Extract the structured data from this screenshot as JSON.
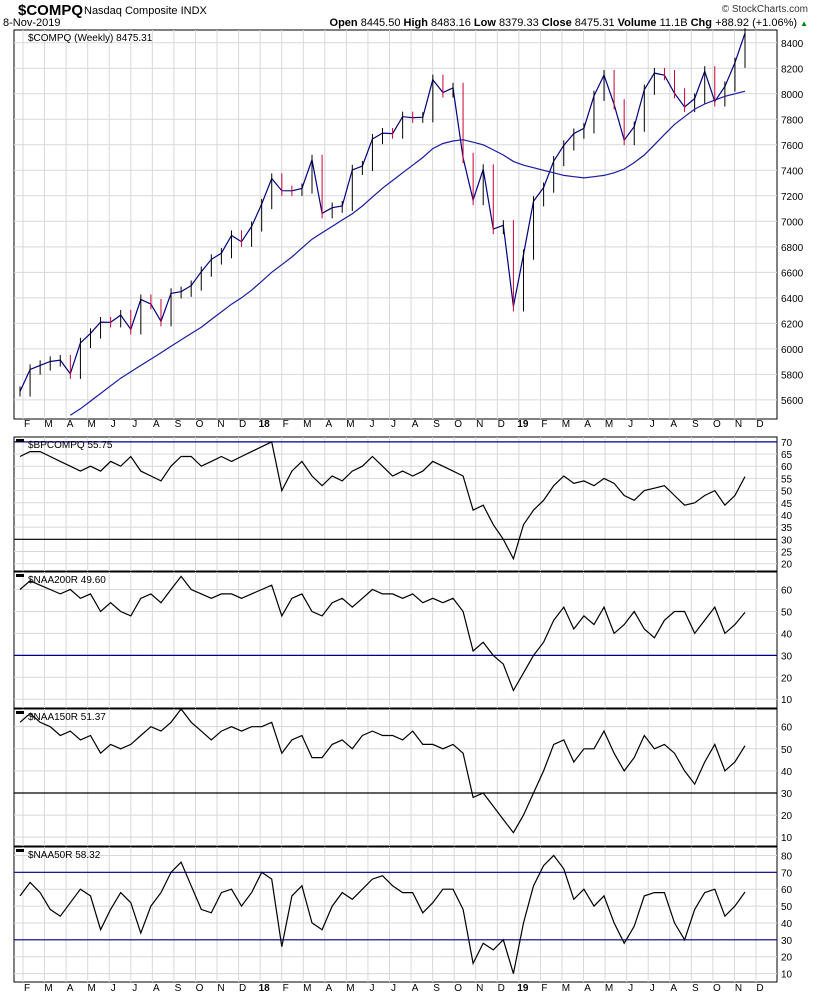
{
  "header": {
    "symbol": "$COMPQ",
    "name": "Nasdaq Composite INDX",
    "date": "8-Nov-2019",
    "brand": "© StockCharts.com",
    "open_label": "Open",
    "open": "8445.50",
    "high_label": "High",
    "high": "8483.16",
    "low_label": "Low",
    "low": "8379.33",
    "close_label": "Close",
    "close": "8475.31",
    "volume_label": "Volume",
    "volume": "11.1B",
    "chg_label": "Chg",
    "chg": "+88.92 (+1.06%)",
    "chg_arrow": "▲"
  },
  "colors": {
    "price": "#000080",
    "ma": "#1a1aa0",
    "indicator": "#000000",
    "ref_blue": "#00008b",
    "ref_black": "#000000",
    "grid": "#d8d8d8",
    "down_bar": "#cc0033"
  },
  "chart_data": [
    {
      "type": "line",
      "legend": "$COMPQ (Weekly) 8475.31",
      "ylim": [
        5450,
        8500
      ],
      "yticks": [
        5600,
        5800,
        6000,
        6200,
        6400,
        6600,
        6800,
        7000,
        7200,
        7400,
        7600,
        7800,
        8000,
        8200,
        8400
      ],
      "x": [
        "2017-02-03",
        "2017-02-17",
        "2017-03-03",
        "2017-03-17",
        "2017-03-31",
        "2017-04-14",
        "2017-04-28",
        "2017-05-12",
        "2017-05-26",
        "2017-06-09",
        "2017-06-23",
        "2017-07-07",
        "2017-07-21",
        "2017-08-04",
        "2017-08-18",
        "2017-09-01",
        "2017-09-15",
        "2017-09-29",
        "2017-10-13",
        "2017-10-27",
        "2017-11-10",
        "2017-11-24",
        "2017-12-08",
        "2017-12-22",
        "2018-01-05",
        "2018-01-19",
        "2018-02-02",
        "2018-02-16",
        "2018-03-02",
        "2018-03-16",
        "2018-03-30",
        "2018-04-13",
        "2018-04-27",
        "2018-05-11",
        "2018-05-25",
        "2018-06-08",
        "2018-06-22",
        "2018-07-06",
        "2018-07-20",
        "2018-08-03",
        "2018-08-17",
        "2018-08-31",
        "2018-09-14",
        "2018-09-28",
        "2018-10-12",
        "2018-10-26",
        "2018-11-09",
        "2018-11-23",
        "2018-12-07",
        "2018-12-21",
        "2019-01-04",
        "2019-01-18",
        "2019-02-01",
        "2019-02-15",
        "2019-03-01",
        "2019-03-15",
        "2019-03-29",
        "2019-04-12",
        "2019-04-26",
        "2019-05-10",
        "2019-05-24",
        "2019-06-07",
        "2019-06-21",
        "2019-07-05",
        "2019-07-19",
        "2019-08-02",
        "2019-08-16",
        "2019-08-30",
        "2019-09-13",
        "2019-09-27",
        "2019-10-11",
        "2019-10-25",
        "2019-11-08"
      ],
      "series": [
        {
          "name": "$COMPQ",
          "values": [
            5666,
            5838,
            5870,
            5901,
            5912,
            5805,
            6047,
            6121,
            6210,
            6208,
            6265,
            6153,
            6387,
            6351,
            6216,
            6435,
            6448,
            6496,
            6605,
            6701,
            6750,
            6889,
            6840,
            6959,
            7136,
            7336,
            7240,
            7239,
            7257,
            7482,
            7063,
            7107,
            7120,
            7403,
            7434,
            7645,
            7692,
            7688,
            7820,
            7812,
            7816,
            8110,
            8010,
            8046,
            7497,
            7167,
            7407,
            6939,
            6969,
            6333,
            6739,
            7157,
            7264,
            7472,
            7595,
            7688,
            7729,
            7984,
            8146,
            7917,
            7637,
            7742,
            8032,
            8162,
            8146,
            8004,
            7896,
            7963,
            8176,
            7940,
            8057,
            8243,
            8475
          ]
        },
        {
          "values": [
            null,
            null,
            null,
            null,
            null,
            5480,
            5530,
            5590,
            5650,
            5710,
            5770,
            5820,
            5870,
            5920,
            5970,
            6020,
            6070,
            6120,
            6170,
            6230,
            6290,
            6350,
            6400,
            6460,
            6530,
            6600,
            6660,
            6720,
            6790,
            6860,
            6910,
            6960,
            7010,
            7060,
            7120,
            7190,
            7260,
            7320,
            7380,
            7440,
            7500,
            7570,
            7610,
            7630,
            7640,
            7620,
            7600,
            7560,
            7520,
            7470,
            7440,
            7420,
            7400,
            7380,
            7360,
            7350,
            7340,
            7350,
            7360,
            7380,
            7410,
            7460,
            7520,
            7600,
            7680,
            7760,
            7820,
            7880,
            7920,
            7950,
            7980,
            8000,
            8020
          ]
        }
      ]
    },
    {
      "type": "line",
      "legend": "$BPCOMPQ 55.75",
      "ylim": [
        17,
        72
      ],
      "yticks": [
        20,
        25,
        30,
        35,
        40,
        45,
        50,
        55,
        60,
        65,
        70
      ],
      "ref_lines": [
        {
          "value": 70,
          "color": "blue"
        },
        {
          "value": 30,
          "color": "black"
        }
      ],
      "values": [
        64,
        66,
        66,
        64,
        62,
        60,
        58,
        60,
        58,
        62,
        60,
        64,
        58,
        56,
        54,
        60,
        64,
        64,
        60,
        62,
        64,
        62,
        64,
        66,
        68,
        70,
        50,
        58,
        62,
        56,
        52,
        56,
        54,
        58,
        60,
        64,
        60,
        56,
        58,
        56,
        58,
        62,
        60,
        58,
        56,
        42,
        44,
        36,
        30,
        22,
        36,
        42,
        46,
        52,
        56,
        53,
        54,
        52,
        55,
        53,
        48,
        46,
        50,
        51,
        52,
        48,
        44,
        45,
        48,
        50,
        44,
        48,
        55.75
      ]
    },
    {
      "type": "line",
      "legend": "$NAA200R 49.60",
      "ylim": [
        6,
        68
      ],
      "yticks": [
        10,
        20,
        30,
        40,
        50,
        60
      ],
      "ref_lines": [
        {
          "value": 30,
          "color": "blue"
        }
      ],
      "values": [
        60,
        64,
        62,
        60,
        58,
        60,
        56,
        58,
        50,
        54,
        50,
        48,
        56,
        58,
        54,
        60,
        66,
        60,
        58,
        56,
        58,
        58,
        56,
        58,
        60,
        62,
        48,
        56,
        58,
        50,
        48,
        54,
        56,
        52,
        56,
        60,
        58,
        58,
        56,
        58,
        54,
        56,
        54,
        56,
        50,
        32,
        36,
        30,
        26,
        14,
        22,
        30,
        36,
        46,
        52,
        42,
        48,
        44,
        52,
        40,
        44,
        50,
        42,
        38,
        46,
        50,
        50,
        40,
        46,
        52,
        40,
        44,
        49.6
      ]
    },
    {
      "type": "line",
      "legend": "$NAA150R 51.37",
      "ylim": [
        6,
        68
      ],
      "yticks": [
        10,
        20,
        30,
        40,
        50,
        60
      ],
      "ref_lines": [
        {
          "value": 30,
          "color": "black"
        }
      ],
      "values": [
        62,
        66,
        62,
        60,
        56,
        58,
        54,
        56,
        48,
        52,
        50,
        52,
        56,
        60,
        58,
        62,
        68,
        62,
        58,
        54,
        58,
        60,
        58,
        60,
        60,
        62,
        48,
        54,
        56,
        46,
        46,
        52,
        54,
        50,
        56,
        58,
        56,
        56,
        54,
        58,
        52,
        52,
        50,
        52,
        48,
        28,
        30,
        24,
        18,
        12,
        20,
        30,
        40,
        52,
        54,
        44,
        50,
        50,
        58,
        48,
        40,
        46,
        56,
        50,
        52,
        48,
        40,
        34,
        44,
        52,
        40,
        44,
        51.37
      ]
    },
    {
      "type": "line",
      "legend": "$NAA50R 58.32",
      "ylim": [
        5,
        85
      ],
      "yticks": [
        10,
        20,
        30,
        40,
        50,
        60,
        70,
        80
      ],
      "ref_lines": [
        {
          "value": 70,
          "color": "blue"
        },
        {
          "value": 30,
          "color": "blue"
        }
      ],
      "values": [
        56,
        64,
        58,
        48,
        44,
        52,
        60,
        56,
        36,
        48,
        58,
        52,
        34,
        50,
        58,
        70,
        76,
        62,
        48,
        46,
        58,
        60,
        50,
        58,
        70,
        66,
        26,
        56,
        62,
        40,
        36,
        50,
        58,
        54,
        60,
        66,
        68,
        62,
        58,
        58,
        46,
        52,
        60,
        60,
        48,
        16,
        28,
        24,
        30,
        10,
        40,
        62,
        74,
        80,
        72,
        54,
        60,
        50,
        56,
        40,
        28,
        38,
        56,
        58,
        58,
        40,
        30,
        48,
        58,
        60,
        44,
        50,
        58.32
      ]
    }
  ],
  "x_axis_labels": [
    "F",
    "M",
    "A",
    "M",
    "J",
    "J",
    "A",
    "S",
    "O",
    "N",
    "D",
    "18",
    "F",
    "M",
    "A",
    "M",
    "J",
    "J",
    "A",
    "S",
    "O",
    "N",
    "D",
    "19",
    "F",
    "M",
    "A",
    "M",
    "J",
    "J",
    "A",
    "S",
    "O",
    "N",
    "D"
  ]
}
